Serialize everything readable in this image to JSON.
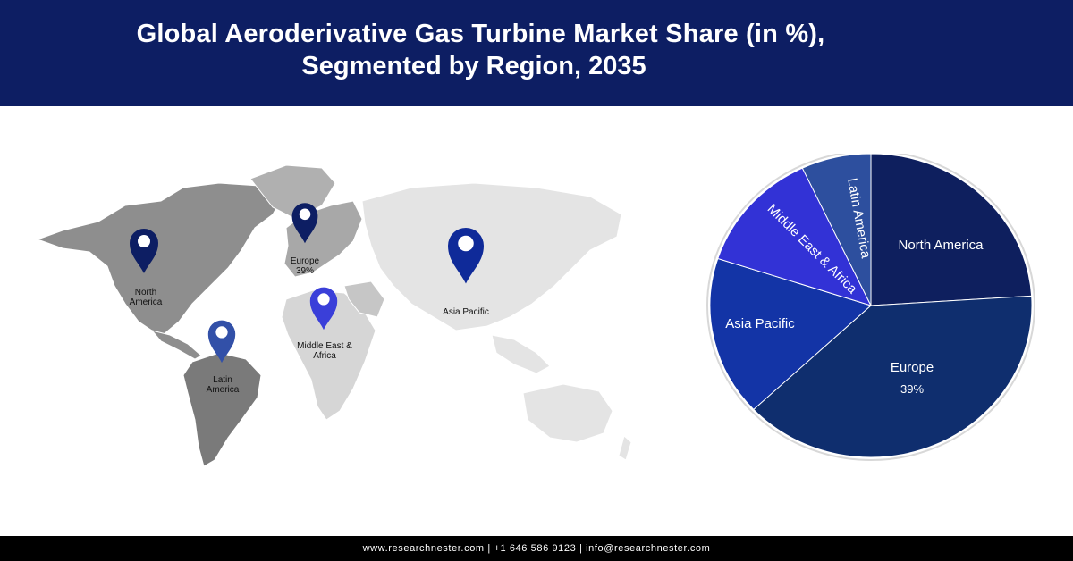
{
  "header": {
    "title_line1": "Global Aeroderivative Gas Turbine Market Share (in %),",
    "title_line2": "Segmented by Region, 2035"
  },
  "map": {
    "pins": [
      {
        "name": "north-america",
        "label_lines": [
          "North",
          "America"
        ],
        "color": "#0d1e63"
      },
      {
        "name": "europe",
        "label_lines": [
          "Europe",
          "39%"
        ],
        "color": "#0d1e63"
      },
      {
        "name": "asia-pacific",
        "label_lines": [
          "Asia Pacific"
        ],
        "color": "#0f2a99"
      },
      {
        "name": "middle-east-africa",
        "label_lines": [
          "Middle East &",
          "Africa"
        ],
        "color": "#3a3fd9"
      },
      {
        "name": "latin-america",
        "label_lines": [
          "Latin",
          "America"
        ],
        "color": "#3250a8"
      }
    ]
  },
  "chart_data": {
    "type": "pie",
    "start_angle_deg": 0,
    "slices": [
      {
        "label": "North America",
        "value": 24,
        "color": "#0e1f5e",
        "value_label": ""
      },
      {
        "label": "Europe",
        "value": 39,
        "color": "#0f2e6e",
        "value_label": "39%"
      },
      {
        "label": "Asia Pacific",
        "value": 17,
        "color": "#1334a6",
        "value_label": ""
      },
      {
        "label": "Middle East & Africa",
        "value": 13,
        "color": "#3232d6",
        "value_label": ""
      },
      {
        "label": "Latin America",
        "value": 7,
        "color": "#2d4f9e",
        "value_label": ""
      }
    ]
  },
  "footer": {
    "text": "www.researchnester.com | +1 646 586 9123 | info@researchnester.com"
  }
}
